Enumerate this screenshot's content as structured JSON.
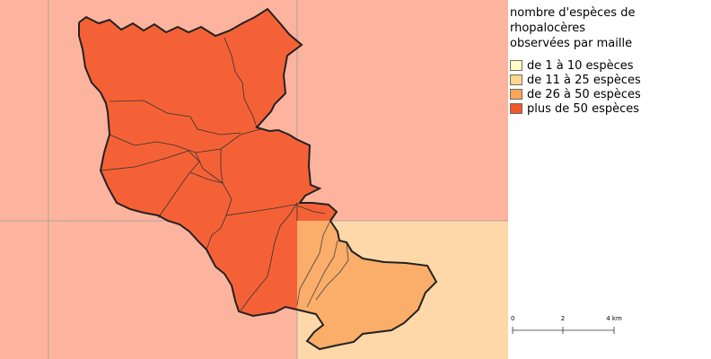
{
  "legend": {
    "title_lines": [
      "nombre d'espèces de",
      "rhopalocères",
      "observées par maille"
    ],
    "items": [
      {
        "label": "de 1 à 10 espèces",
        "color": "#ffffc4"
      },
      {
        "label": "de 11 à 25 espèces",
        "color": "#fed78a"
      },
      {
        "label": "de 26 à 50 espèces",
        "color": "#fba659"
      },
      {
        "label": "plus de 50 espèces",
        "color": "#f2572a"
      }
    ]
  },
  "grid_cells": [
    {
      "id": "top-left",
      "class": "plus de 50 espèces",
      "color": "#fcb49e"
    },
    {
      "id": "bottom-left",
      "class": "plus de 50 espèces",
      "color": "#fcb49e"
    },
    {
      "id": "bottom-right",
      "class": "de 11 à 25 espèces",
      "color": "#fed8a9"
    }
  ],
  "zones": [
    {
      "id": "main",
      "class": "plus de 50 espèces",
      "color": "#f56136"
    },
    {
      "id": "south-east",
      "class": "de 26 à 50 espèces",
      "color": "#fbad6a"
    }
  ],
  "scale": {
    "ticks": [
      "0",
      "2",
      "4 km"
    ]
  }
}
